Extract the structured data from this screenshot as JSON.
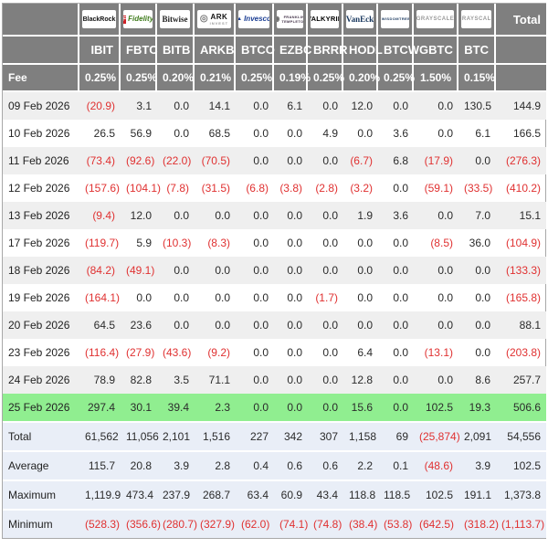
{
  "labels": {
    "fee_label": "Fee",
    "total_header": "Total"
  },
  "colors": {
    "header_bg": "#7f7f7f",
    "row_alt_bg": "#efefef",
    "highlight_row_bg": "#90ee90",
    "summary_bg": "#e9eef7",
    "negative_text": "#e03131"
  },
  "logos": [
    {
      "id": "blackrock",
      "text": "BlackRock"
    },
    {
      "id": "fidelity",
      "text": "Fidelity",
      "icon": "F"
    },
    {
      "id": "bitwise",
      "text": "Bitwise"
    },
    {
      "id": "ark",
      "text": "ARK",
      "sub": "INVEST",
      "icon": "◎"
    },
    {
      "id": "invesco",
      "text": "Invesco",
      "icon": "▲"
    },
    {
      "id": "franklin",
      "text": "FRANKLIN",
      "sub": "TEMPLETON",
      "icon": "◉"
    },
    {
      "id": "valkyrie",
      "text": "VALKYRIE"
    },
    {
      "id": "vaneck",
      "text": "VanEck"
    },
    {
      "id": "wisdomtree",
      "text": "WISDOMTREE",
      "icon": "tree"
    },
    {
      "id": "grayscale",
      "text": "GRAYSCALE"
    },
    {
      "id": "grayscale2",
      "text": "GRAYSCALE"
    }
  ],
  "chart_data": {
    "type": "table",
    "columns": [
      "IBIT",
      "FBTC",
      "BITB",
      "ARKB",
      "BTCO",
      "EZBC",
      "BRRR",
      "HODL",
      "BTCW",
      "GBTC",
      "BTC",
      "Total"
    ],
    "providers": [
      "BlackRock",
      "Fidelity",
      "Bitwise",
      "ARK Invest",
      "Invesco",
      "Franklin Templeton",
      "Valkyrie",
      "VanEck",
      "WisdomTree",
      "Grayscale",
      "Grayscale"
    ],
    "fees": [
      "0.25%",
      "0.25%",
      "0.20%",
      "0.21%",
      "0.25%",
      "0.19%",
      "0.25%",
      "0.20%",
      "0.25%",
      "1.50%",
      "0.15%"
    ],
    "rows": [
      {
        "date": "09 Feb 2026",
        "values": [
          "(20.9)",
          "3.1",
          "0.0",
          "14.1",
          "0.0",
          "6.1",
          "0.0",
          "12.0",
          "0.0",
          "0.0",
          "130.5",
          "144.9"
        ],
        "highlight": false
      },
      {
        "date": "10 Feb 2026",
        "values": [
          "26.5",
          "56.9",
          "0.0",
          "68.5",
          "0.0",
          "0.0",
          "4.9",
          "0.0",
          "3.6",
          "0.0",
          "6.1",
          "166.5"
        ],
        "highlight": false
      },
      {
        "date": "11 Feb 2026",
        "values": [
          "(73.4)",
          "(92.6)",
          "(22.0)",
          "(70.5)",
          "0.0",
          "0.0",
          "0.0",
          "(6.7)",
          "6.8",
          "(17.9)",
          "0.0",
          "(276.3)"
        ],
        "highlight": false
      },
      {
        "date": "12 Feb 2026",
        "values": [
          "(157.6)",
          "(104.1)",
          "(7.8)",
          "(31.5)",
          "(6.8)",
          "(3.8)",
          "(2.8)",
          "(3.2)",
          "0.0",
          "(59.1)",
          "(33.5)",
          "(410.2)"
        ],
        "highlight": false
      },
      {
        "date": "13 Feb 2026",
        "values": [
          "(9.4)",
          "12.0",
          "0.0",
          "0.0",
          "0.0",
          "0.0",
          "0.0",
          "1.9",
          "3.6",
          "0.0",
          "7.0",
          "15.1"
        ],
        "highlight": false
      },
      {
        "date": "17 Feb 2026",
        "values": [
          "(119.7)",
          "5.9",
          "(10.3)",
          "(8.3)",
          "0.0",
          "0.0",
          "0.0",
          "0.0",
          "0.0",
          "(8.5)",
          "36.0",
          "(104.9)"
        ],
        "highlight": false
      },
      {
        "date": "18 Feb 2026",
        "values": [
          "(84.2)",
          "(49.1)",
          "0.0",
          "0.0",
          "0.0",
          "0.0",
          "0.0",
          "0.0",
          "0.0",
          "0.0",
          "0.0",
          "(133.3)"
        ],
        "highlight": false
      },
      {
        "date": "19 Feb 2026",
        "values": [
          "(164.1)",
          "0.0",
          "0.0",
          "0.0",
          "0.0",
          "0.0",
          "(1.7)",
          "0.0",
          "0.0",
          "0.0",
          "0.0",
          "(165.8)"
        ],
        "highlight": false
      },
      {
        "date": "20 Feb 2026",
        "values": [
          "64.5",
          "23.6",
          "0.0",
          "0.0",
          "0.0",
          "0.0",
          "0.0",
          "0.0",
          "0.0",
          "0.0",
          "0.0",
          "88.1"
        ],
        "highlight": false
      },
      {
        "date": "23 Feb 2026",
        "values": [
          "(116.4)",
          "(27.9)",
          "(43.6)",
          "(9.2)",
          "0.0",
          "0.0",
          "0.0",
          "6.4",
          "0.0",
          "(13.1)",
          "0.0",
          "(203.8)"
        ],
        "highlight": false
      },
      {
        "date": "24 Feb 2026",
        "values": [
          "78.9",
          "82.8",
          "3.5",
          "71.1",
          "0.0",
          "0.0",
          "0.0",
          "12.8",
          "0.0",
          "0.0",
          "8.6",
          "257.7"
        ],
        "highlight": false
      },
      {
        "date": "25 Feb 2026",
        "values": [
          "297.4",
          "30.1",
          "39.4",
          "2.3",
          "0.0",
          "0.0",
          "0.0",
          "15.6",
          "0.0",
          "102.5",
          "19.3",
          "506.6"
        ],
        "highlight": true
      }
    ],
    "summary": [
      {
        "label": "Total",
        "values": [
          "61,562",
          "11,056",
          "2,101",
          "1,516",
          "227",
          "342",
          "307",
          "1,158",
          "69",
          "(25,874)",
          "2,091",
          "54,556"
        ]
      },
      {
        "label": "Average",
        "values": [
          "115.7",
          "20.8",
          "3.9",
          "2.8",
          "0.4",
          "0.6",
          "0.6",
          "2.2",
          "0.1",
          "(48.6)",
          "3.9",
          "102.5"
        ]
      },
      {
        "label": "Maximum",
        "values": [
          "1,119.9",
          "473.4",
          "237.9",
          "268.7",
          "63.4",
          "60.9",
          "43.4",
          "118.8",
          "118.5",
          "102.5",
          "191.1",
          "1,373.8"
        ]
      },
      {
        "label": "Minimum",
        "values": [
          "(528.3)",
          "(356.6)",
          "(280.7)",
          "(327.9)",
          "(62.0)",
          "(74.1)",
          "(74.8)",
          "(38.4)",
          "(53.8)",
          "(642.5)",
          "(318.2)",
          "(1,113.7)"
        ]
      }
    ]
  }
}
